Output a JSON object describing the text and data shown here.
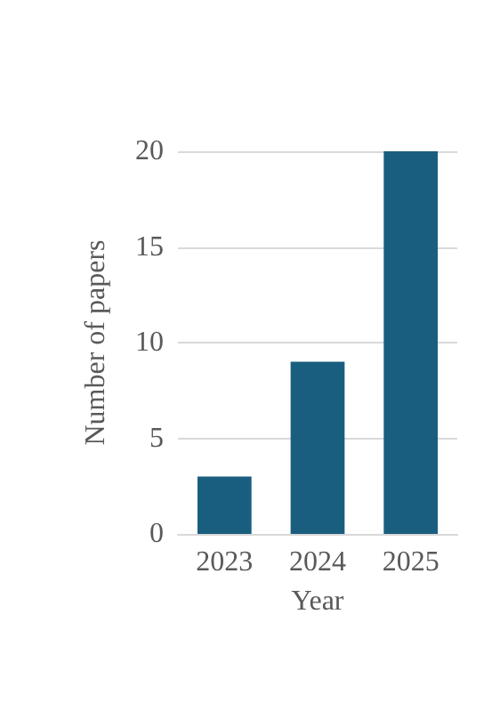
{
  "chart_data": {
    "type": "bar",
    "xlabel": "Year",
    "ylabel": "Number of papers",
    "categories": [
      "2023",
      "2024",
      "2025"
    ],
    "values": [
      3,
      9,
      20
    ],
    "color": "#1a5e7f",
    "ylim": [
      0,
      20
    ],
    "yticks": [
      0,
      5,
      10,
      15,
      20
    ],
    "grid": "y"
  }
}
